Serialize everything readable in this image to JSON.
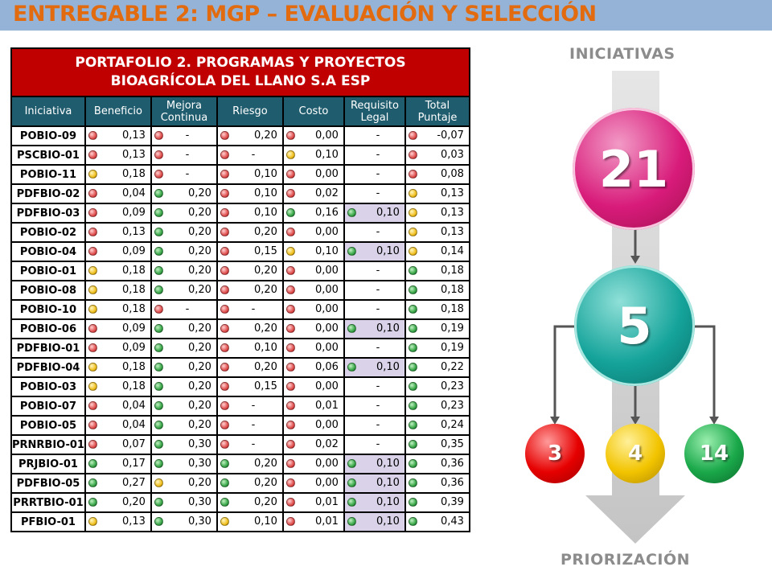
{
  "title": "ENTREGABLE 2: MGP – EVALUACIÓN Y SELECCIÓN",
  "table": {
    "title_line1": "PORTAFOLIO 2. PROGRAMAS Y PROYECTOS",
    "title_line2": "BIOAGRÍCOLA DEL LLANO S.A ESP",
    "headers": [
      "Iniciativa",
      "Beneficio",
      "Mejora Continua",
      "Riesgo",
      "Costo",
      "Requisito Legal",
      "Total Puntaje"
    ],
    "rows": [
      {
        "name": "POBIO-09",
        "beneficio": "0,13",
        "mejora": "-",
        "riesgo": "0,20",
        "costo": "0,00",
        "req": "-",
        "total": "-0,07",
        "d": [
          "r",
          "r",
          "r",
          "r",
          "r"
        ]
      },
      {
        "name": "PSCBIO-01",
        "beneficio": "0,13",
        "mejora": "-",
        "riesgo": "-",
        "costo": "0,10",
        "req": "-",
        "total": "0,03",
        "d": [
          "r",
          "r",
          "r",
          "y",
          "r"
        ]
      },
      {
        "name": "POBIO-11",
        "beneficio": "0,18",
        "mejora": "-",
        "riesgo": "0,10",
        "costo": "0,00",
        "req": "-",
        "total": "0,08",
        "d": [
          "y",
          "r",
          "r",
          "r",
          "r"
        ]
      },
      {
        "name": "PDFBIO-02",
        "beneficio": "0,04",
        "mejora": "0,20",
        "riesgo": "0,10",
        "costo": "0,02",
        "req": "-",
        "total": "0,13",
        "d": [
          "r",
          "g",
          "r",
          "r",
          "y"
        ]
      },
      {
        "name": "PDFBIO-03",
        "beneficio": "0,09",
        "mejora": "0,20",
        "riesgo": "0,10",
        "costo": "0,16",
        "req": "0,10",
        "total": "0,13",
        "d": [
          "r",
          "g",
          "r",
          "g",
          "g",
          "y"
        ]
      },
      {
        "name": "POBIO-02",
        "beneficio": "0,13",
        "mejora": "0,20",
        "riesgo": "0,20",
        "costo": "0,00",
        "req": "-",
        "total": "0,13",
        "d": [
          "r",
          "g",
          "r",
          "r",
          "y"
        ]
      },
      {
        "name": "POBIO-04",
        "beneficio": "0,09",
        "mejora": "0,20",
        "riesgo": "0,15",
        "costo": "0,10",
        "req": "0,10",
        "total": "0,14",
        "d": [
          "r",
          "g",
          "r",
          "y",
          "g",
          "y"
        ]
      },
      {
        "name": "POBIO-01",
        "beneficio": "0,18",
        "mejora": "0,20",
        "riesgo": "0,20",
        "costo": "0,00",
        "req": "-",
        "total": "0,18",
        "d": [
          "y",
          "g",
          "r",
          "r",
          "g"
        ]
      },
      {
        "name": "POBIO-08",
        "beneficio": "0,18",
        "mejora": "0,20",
        "riesgo": "0,20",
        "costo": "0,00",
        "req": "-",
        "total": "0,18",
        "d": [
          "y",
          "g",
          "r",
          "r",
          "g"
        ]
      },
      {
        "name": "POBIO-10",
        "beneficio": "0,18",
        "mejora": "-",
        "riesgo": "-",
        "costo": "0,00",
        "req": "-",
        "total": "0,18",
        "d": [
          "y",
          "r",
          "r",
          "r",
          "g"
        ]
      },
      {
        "name": "POBIO-06",
        "beneficio": "0,09",
        "mejora": "0,20",
        "riesgo": "0,20",
        "costo": "0,00",
        "req": "0,10",
        "total": "0,19",
        "d": [
          "r",
          "g",
          "r",
          "r",
          "g",
          "g"
        ]
      },
      {
        "name": "PDFBIO-01",
        "beneficio": "0,09",
        "mejora": "0,20",
        "riesgo": "0,10",
        "costo": "0,00",
        "req": "-",
        "total": "0,19",
        "d": [
          "r",
          "g",
          "r",
          "r",
          "g"
        ]
      },
      {
        "name": "PDFBIO-04",
        "beneficio": "0,18",
        "mejora": "0,20",
        "riesgo": "0,20",
        "costo": "0,06",
        "req": "0,10",
        "total": "0,22",
        "d": [
          "y",
          "g",
          "r",
          "r",
          "g",
          "g"
        ]
      },
      {
        "name": "POBIO-03",
        "beneficio": "0,18",
        "mejora": "0,20",
        "riesgo": "0,15",
        "costo": "0,00",
        "req": "-",
        "total": "0,23",
        "d": [
          "y",
          "g",
          "r",
          "r",
          "g"
        ]
      },
      {
        "name": "POBIO-07",
        "beneficio": "0,04",
        "mejora": "0,20",
        "riesgo": "-",
        "costo": "0,01",
        "req": "-",
        "total": "0,23",
        "d": [
          "r",
          "g",
          "r",
          "r",
          "g"
        ]
      },
      {
        "name": "POBIO-05",
        "beneficio": "0,04",
        "mejora": "0,20",
        "riesgo": "-",
        "costo": "0,00",
        "req": "-",
        "total": "0,24",
        "d": [
          "r",
          "g",
          "r",
          "r",
          "g"
        ]
      },
      {
        "name": "PRNRBIO-01",
        "beneficio": "0,07",
        "mejora": "0,30",
        "riesgo": "-",
        "costo": "0,02",
        "req": "-",
        "total": "0,35",
        "d": [
          "r",
          "g",
          "r",
          "r",
          "g"
        ]
      },
      {
        "name": "PRJBIO-01",
        "beneficio": "0,17",
        "mejora": "0,30",
        "riesgo": "0,20",
        "costo": "0,00",
        "req": "0,10",
        "total": "0,36",
        "d": [
          "g",
          "g",
          "g",
          "r",
          "g",
          "g"
        ]
      },
      {
        "name": "PDFBIO-05",
        "beneficio": "0,27",
        "mejora": "0,20",
        "riesgo": "0,20",
        "costo": "0,00",
        "req": "0,10",
        "total": "0,36",
        "d": [
          "g",
          "y",
          "g",
          "r",
          "g",
          "g"
        ]
      },
      {
        "name": "PRRTBIO-01",
        "beneficio": "0,20",
        "mejora": "0,30",
        "riesgo": "0,20",
        "costo": "0,01",
        "req": "0,10",
        "total": "0,39",
        "d": [
          "g",
          "g",
          "g",
          "r",
          "g",
          "g"
        ]
      },
      {
        "name": "PFBIO-01",
        "beneficio": "0,13",
        "mejora": "0,30",
        "riesgo": "0,10",
        "costo": "0,01",
        "req": "0,10",
        "total": "0,43",
        "d": [
          "y",
          "g",
          "y",
          "r",
          "g",
          "g"
        ]
      }
    ]
  },
  "diagram": {
    "top_label": "INICIATIVAS",
    "bottom_label": "PRIORIZACIÓN",
    "total": "21",
    "selected": "5",
    "red_count": "3",
    "yellow_count": "4",
    "green_count": "14",
    "colors": {
      "magenta": "#d81b7a",
      "teal": "#14a39a",
      "red": "#e60000",
      "yellow": "#f2c400",
      "green": "#1aa84a",
      "arrow": "#c8c8c8"
    }
  }
}
